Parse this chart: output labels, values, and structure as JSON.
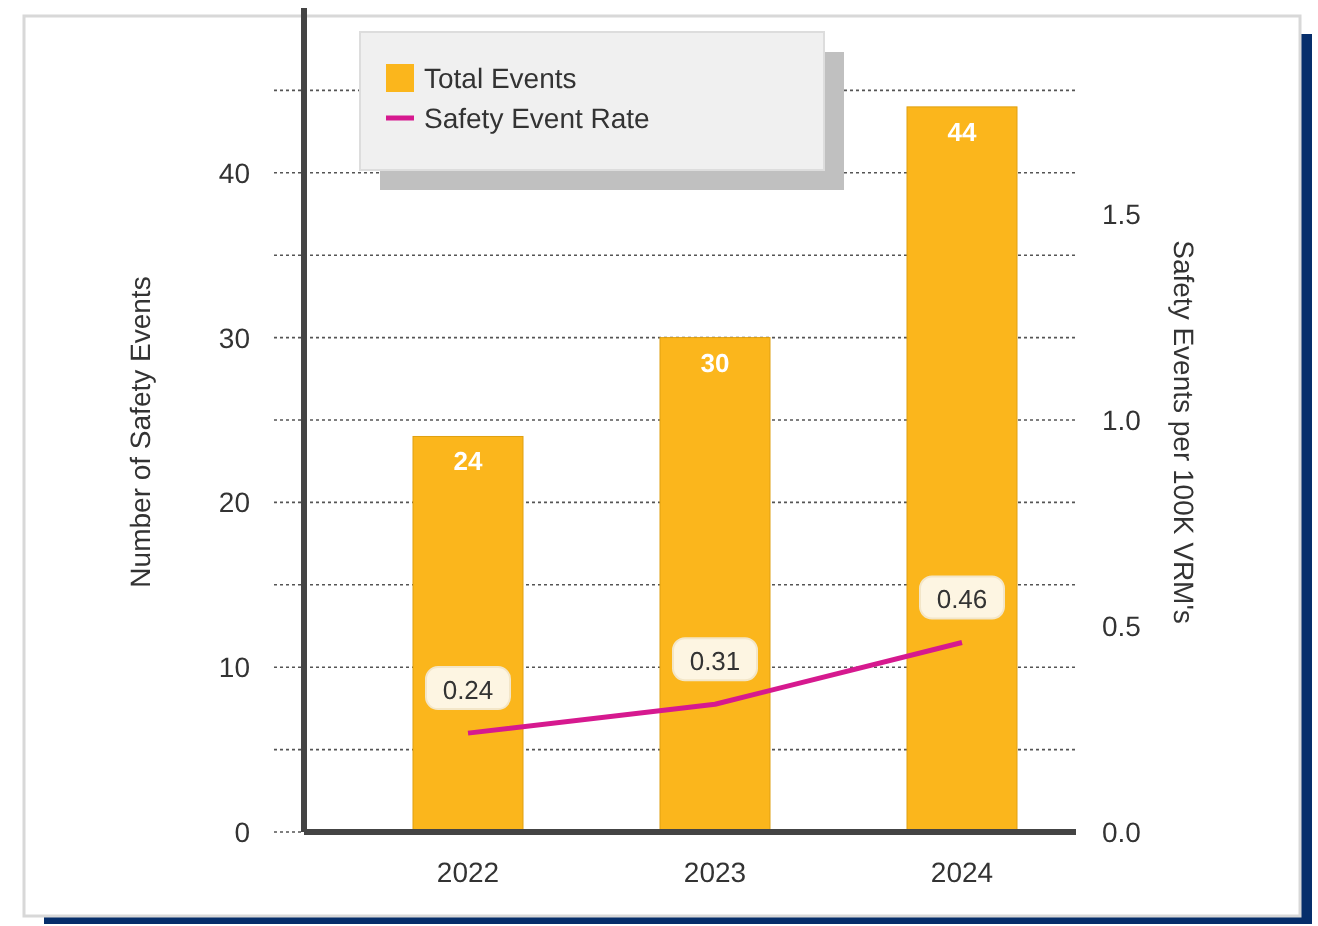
{
  "chart_data": {
    "type": "bar",
    "ylabel": "Number of Safety Events",
    "y2label": "Safety Events per 100K VRM's",
    "categories": [
      "2022",
      "2023",
      "2024"
    ],
    "series": [
      {
        "name": "Total Events",
        "color": "#fbb61c",
        "values": [
          24,
          30,
          44
        ]
      },
      {
        "name": "Safety Event Rate",
        "type": "line",
        "axis": "y2",
        "color": "#d6198f",
        "values": [
          0.24,
          0.31,
          0.46
        ]
      }
    ],
    "ylim": [
      0,
      50
    ],
    "yticks": [
      0,
      {
        "value": 5,
        "label": null
      },
      10,
      {
        "value": 15,
        "label": null
      },
      20,
      {
        "value": 25,
        "label": null
      },
      30,
      {
        "value": 35,
        "label": null
      },
      40,
      {
        "value": 45,
        "label": null
      }
    ],
    "y2lim": [
      0,
      2
    ],
    "y2ticks": [
      {
        "value": 0,
        "label": "0.0"
      },
      0.5,
      {
        "value": 1,
        "label": "1.0"
      },
      1.5
    ],
    "grid": "y",
    "legend": "top",
    "data_labels": true,
    "line_style": "solid",
    "marker": "none"
  }
}
